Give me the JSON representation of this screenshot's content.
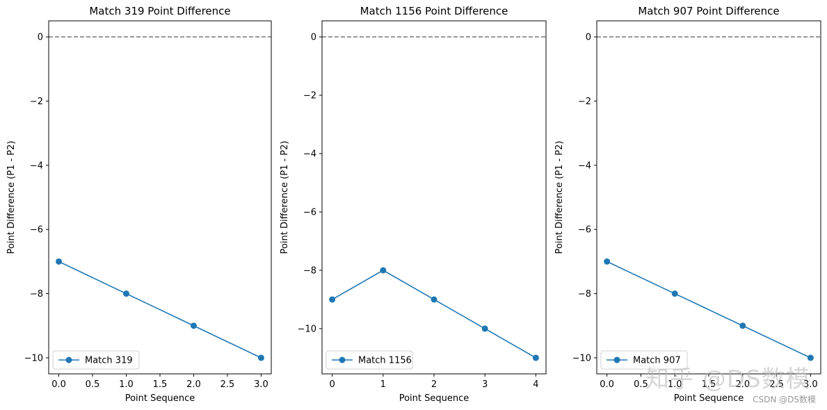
{
  "chart_data": [
    {
      "type": "line",
      "title": "Match 319 Point Difference",
      "xlabel": "Point Sequence",
      "ylabel": "Point Difference (P1 - P2)",
      "x": [
        0,
        1,
        2,
        3
      ],
      "series": [
        {
          "name": "Match 319",
          "values": [
            -7,
            -8,
            -9,
            -10
          ]
        }
      ],
      "xlim": [
        -0.15,
        3.15
      ],
      "ylim": [
        -10.5,
        0.5
      ],
      "xticks": [
        0,
        0.5,
        1,
        1.5,
        2,
        2.5,
        3
      ],
      "xtick_labels": [
        "0.0",
        "0.5",
        "1.0",
        "1.5",
        "2.0",
        "2.5",
        "3.0"
      ],
      "yticks": [
        0,
        -2,
        -4,
        -6,
        -8,
        -10
      ],
      "ytick_labels": [
        "0",
        "−2",
        "−4",
        "−6",
        "−8",
        "−10"
      ],
      "reference_line": 0,
      "legend": "lower-left"
    },
    {
      "type": "line",
      "title": "Match 1156 Point Difference",
      "xlabel": "Point Sequence",
      "ylabel": "Point Difference (P1 - P2)",
      "x": [
        0,
        1,
        2,
        3,
        4
      ],
      "series": [
        {
          "name": "Match 1156",
          "values": [
            -9,
            -8,
            -9,
            -10,
            -11
          ]
        }
      ],
      "xlim": [
        -0.2,
        4.2
      ],
      "ylim": [
        -11.55,
        0.55
      ],
      "xticks": [
        0,
        1,
        2,
        3,
        4
      ],
      "xtick_labels": [
        "0",
        "1",
        "2",
        "3",
        "4"
      ],
      "yticks": [
        0,
        -2,
        -4,
        -6,
        -8,
        -10
      ],
      "ytick_labels": [
        "0",
        "−2",
        "−4",
        "−6",
        "−8",
        "−10"
      ],
      "reference_line": 0,
      "legend": "lower-left"
    },
    {
      "type": "line",
      "title": "Match 907 Point Difference",
      "xlabel": "Point Sequence",
      "ylabel": "Point Difference (P1 - P2)",
      "x": [
        0,
        1,
        2,
        3
      ],
      "series": [
        {
          "name": "Match 907",
          "values": [
            -7,
            -8,
            -9,
            -10
          ]
        }
      ],
      "xlim": [
        -0.15,
        3.15
      ],
      "ylim": [
        -10.5,
        0.5
      ],
      "xticks": [
        0,
        0.5,
        1,
        1.5,
        2,
        2.5,
        3
      ],
      "xtick_labels": [
        "0.0",
        "0.5",
        "1.0",
        "1.5",
        "2.0",
        "2.5",
        "3.0"
      ],
      "yticks": [
        0,
        -2,
        -4,
        -6,
        -8,
        -10
      ],
      "ytick_labels": [
        "0",
        "−2",
        "−4",
        "−6",
        "−8",
        "−10"
      ],
      "reference_line": 0,
      "legend": "lower-left"
    }
  ],
  "colors": {
    "series": "#1f77b4",
    "reference": "#808080",
    "axis": "#000000"
  },
  "watermark": {
    "large": "知乎 @DS数模",
    "small": "CSDN @DS数模"
  }
}
